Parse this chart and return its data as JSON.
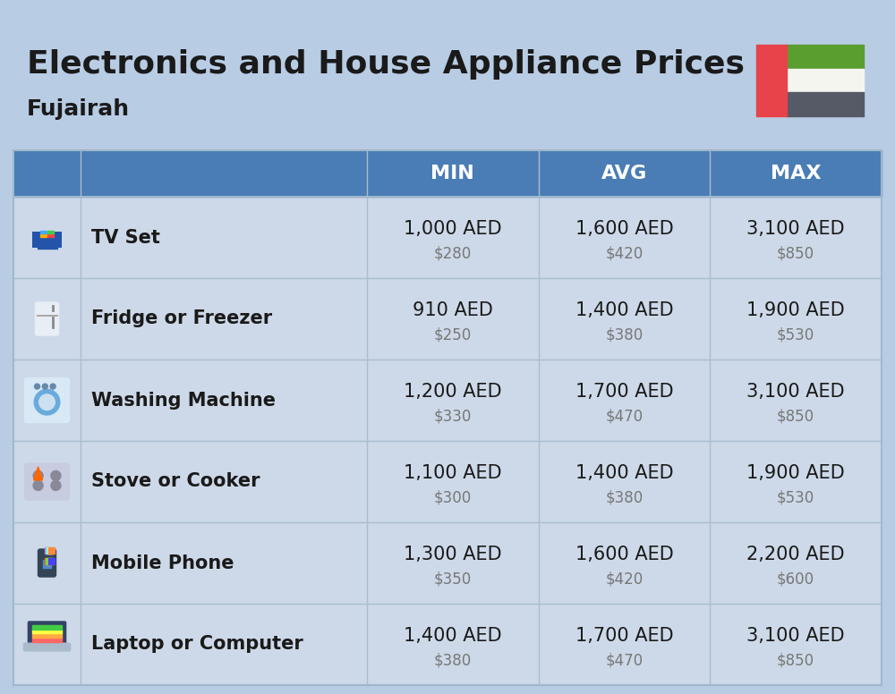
{
  "title": "Electronics and House Appliance Prices",
  "subtitle": "Fujairah",
  "background_color": "#b8cce4",
  "header_color": "#4a7db5",
  "header_text_color": "#ffffff",
  "row_bg_color_light": "#cdd9e8",
  "row_bg_color_dark": "#bfcfdf",
  "separator_color": "#a0b8d0",
  "columns": [
    "MIN",
    "AVG",
    "MAX"
  ],
  "items": [
    {
      "name": "TV Set",
      "min_aed": "1,000 AED",
      "min_usd": "$280",
      "avg_aed": "1,600 AED",
      "avg_usd": "$420",
      "max_aed": "3,100 AED",
      "max_usd": "$850"
    },
    {
      "name": "Fridge or Freezer",
      "min_aed": "910 AED",
      "min_usd": "$250",
      "avg_aed": "1,400 AED",
      "avg_usd": "$380",
      "max_aed": "1,900 AED",
      "max_usd": "$530"
    },
    {
      "name": "Washing Machine",
      "min_aed": "1,200 AED",
      "min_usd": "$330",
      "avg_aed": "1,700 AED",
      "avg_usd": "$470",
      "max_aed": "3,100 AED",
      "max_usd": "$850"
    },
    {
      "name": "Stove or Cooker",
      "min_aed": "1,100 AED",
      "min_usd": "$300",
      "avg_aed": "1,400 AED",
      "avg_usd": "$380",
      "max_aed": "1,900 AED",
      "max_usd": "$530"
    },
    {
      "name": "Mobile Phone",
      "min_aed": "1,300 AED",
      "min_usd": "$350",
      "avg_aed": "1,600 AED",
      "avg_usd": "$420",
      "max_aed": "2,200 AED",
      "max_usd": "$600"
    },
    {
      "name": "Laptop or Computer",
      "min_aed": "1,400 AED",
      "min_usd": "$380",
      "avg_aed": "1,700 AED",
      "avg_usd": "$470",
      "max_aed": "3,100 AED",
      "max_usd": "$850"
    }
  ],
  "flag": {
    "green": "#5a9e2f",
    "white": "#f5f5f0",
    "black": "#555a66",
    "red": "#e8434a"
  }
}
